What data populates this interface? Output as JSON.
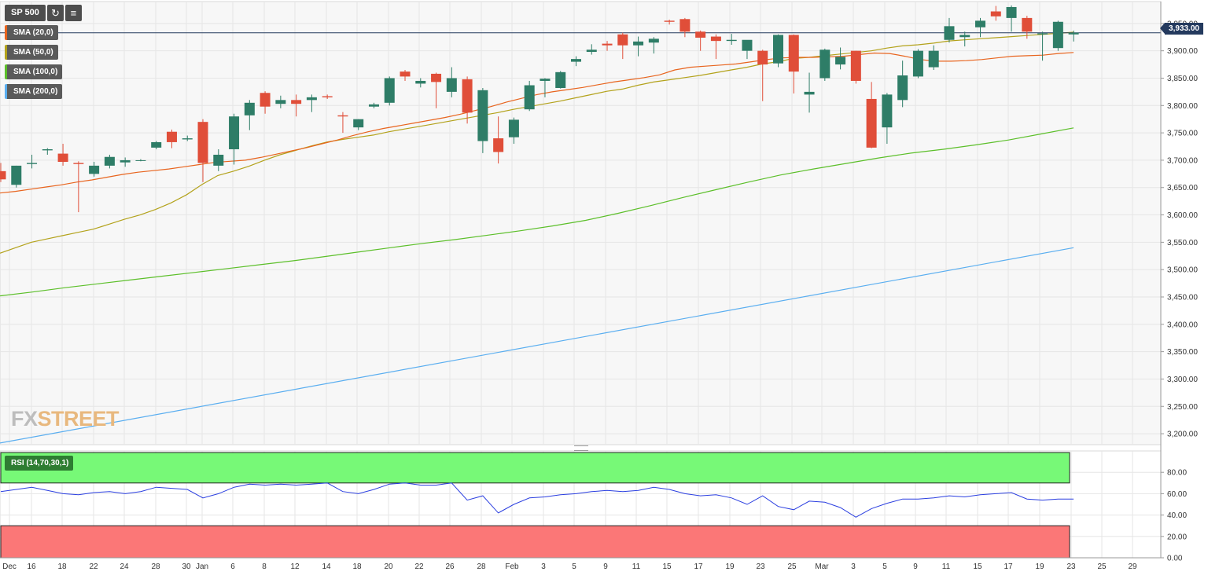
{
  "symbol": "SP 500",
  "toolbar": {
    "refresh_icon": "refresh-icon",
    "settings_icon": "chart-settings-icon"
  },
  "indicators": [
    {
      "label": "SMA (20,0)",
      "color": "#e8641e"
    },
    {
      "label": "SMA (50,0)",
      "color": "#b3a21b"
    },
    {
      "label": "SMA (100,0)",
      "color": "#5cbf2a"
    },
    {
      "label": "SMA (200,0)",
      "color": "#5aaef0"
    }
  ],
  "rsi_label": "RSI (14,70,30,1)",
  "last_price_label": "3,933.00",
  "last_price": 3933,
  "watermark": {
    "part1": "FX",
    "part2": "STREET"
  },
  "colors": {
    "up": "#2e7d67",
    "down": "#e04e39",
    "grid": "#e6e6e6",
    "rsi_line": "#2a3ee0",
    "overbought": "#77f977",
    "oversold": "#fb7777",
    "current_price_line": "#243a5e"
  },
  "chart_data": [
    {
      "type": "candlestick",
      "title": "SP 500",
      "ylim": [
        3180,
        3990
      ],
      "y_ticks": [
        "3,200.00",
        "3,250.00",
        "3,300.00",
        "3,350.00",
        "3,400.00",
        "3,450.00",
        "3,500.00",
        "3,550.00",
        "3,600.00",
        "3,650.00",
        "3,700.00",
        "3,750.00",
        "3,800.00",
        "3,850.00",
        "3,900.00",
        "3,950.00"
      ],
      "y_tick_values": [
        3200,
        3250,
        3300,
        3350,
        3400,
        3450,
        3500,
        3550,
        3600,
        3650,
        3700,
        3750,
        3800,
        3850,
        3900,
        3950
      ],
      "x_ticks": [
        "Dec",
        "16",
        "18",
        "22",
        "24",
        "28",
        "30",
        "Jan",
        "6",
        "8",
        "12",
        "14",
        "18",
        "20",
        "22",
        "26",
        "28",
        "Feb",
        "3",
        "5",
        "9",
        "11",
        "15",
        "17",
        "19",
        "23",
        "25",
        "Mar",
        "3",
        "5",
        "9",
        "11",
        "15",
        "17",
        "19",
        "23",
        "25",
        "29"
      ],
      "candles": [
        {
          "o": 3680,
          "h": 3695,
          "l": 3660,
          "c": 3665
        },
        {
          "o": 3655,
          "h": 3690,
          "l": 3650,
          "c": 3690
        },
        {
          "o": 3693,
          "h": 3710,
          "l": 3685,
          "c": 3695
        },
        {
          "o": 3718,
          "h": 3722,
          "l": 3710,
          "c": 3720
        },
        {
          "o": 3712,
          "h": 3730,
          "l": 3690,
          "c": 3697
        },
        {
          "o": 3695,
          "h": 3698,
          "l": 3605,
          "c": 3693
        },
        {
          "o": 3675,
          "h": 3697,
          "l": 3670,
          "c": 3690
        },
        {
          "o": 3690,
          "h": 3710,
          "l": 3685,
          "c": 3706
        },
        {
          "o": 3696,
          "h": 3705,
          "l": 3688,
          "c": 3700
        },
        {
          "o": 3700,
          "h": 3702,
          "l": 3698,
          "c": 3700
        },
        {
          "o": 3723,
          "h": 3735,
          "l": 3720,
          "c": 3733
        },
        {
          "o": 3752,
          "h": 3756,
          "l": 3722,
          "c": 3733
        },
        {
          "o": 3738,
          "h": 3745,
          "l": 3735,
          "c": 3740
        },
        {
          "o": 3770,
          "h": 3775,
          "l": 3660,
          "c": 3695
        },
        {
          "o": 3690,
          "h": 3720,
          "l": 3680,
          "c": 3710
        },
        {
          "o": 3720,
          "h": 3785,
          "l": 3692,
          "c": 3780
        },
        {
          "o": 3782,
          "h": 3810,
          "l": 3755,
          "c": 3805
        },
        {
          "o": 3823,
          "h": 3826,
          "l": 3785,
          "c": 3798
        },
        {
          "o": 3803,
          "h": 3818,
          "l": 3795,
          "c": 3810
        },
        {
          "o": 3810,
          "h": 3820,
          "l": 3780,
          "c": 3803
        },
        {
          "o": 3810,
          "h": 3820,
          "l": 3788,
          "c": 3815
        },
        {
          "o": 3817,
          "h": 3820,
          "l": 3812,
          "c": 3815
        },
        {
          "o": 3782,
          "h": 3788,
          "l": 3750,
          "c": 3780
        },
        {
          "o": 3760,
          "h": 3775,
          "l": 3755,
          "c": 3775
        },
        {
          "o": 3798,
          "h": 3805,
          "l": 3795,
          "c": 3802
        },
        {
          "o": 3805,
          "h": 3853,
          "l": 3800,
          "c": 3850
        },
        {
          "o": 3862,
          "h": 3865,
          "l": 3845,
          "c": 3853
        },
        {
          "o": 3840,
          "h": 3850,
          "l": 3833,
          "c": 3845
        },
        {
          "o": 3858,
          "h": 3860,
          "l": 3795,
          "c": 3843
        },
        {
          "o": 3825,
          "h": 3870,
          "l": 3815,
          "c": 3850
        },
        {
          "o": 3848,
          "h": 3853,
          "l": 3767,
          "c": 3787
        },
        {
          "o": 3735,
          "h": 3832,
          "l": 3713,
          "c": 3828
        },
        {
          "o": 3740,
          "h": 3780,
          "l": 3694,
          "c": 3715
        },
        {
          "o": 3742,
          "h": 3778,
          "l": 3730,
          "c": 3774
        },
        {
          "o": 3793,
          "h": 3845,
          "l": 3790,
          "c": 3837
        },
        {
          "o": 3845,
          "h": 3850,
          "l": 3815,
          "c": 3849
        },
        {
          "o": 3832,
          "h": 3863,
          "l": 3831,
          "c": 3861
        },
        {
          "o": 3880,
          "h": 3890,
          "l": 3872,
          "c": 3885
        },
        {
          "o": 3898,
          "h": 3912,
          "l": 3893,
          "c": 3902
        },
        {
          "o": 3913,
          "h": 3918,
          "l": 3900,
          "c": 3910
        },
        {
          "o": 3930,
          "h": 3933,
          "l": 3885,
          "c": 3910
        },
        {
          "o": 3910,
          "h": 3926,
          "l": 3890,
          "c": 3917
        },
        {
          "o": 3915,
          "h": 3925,
          "l": 3895,
          "c": 3922
        },
        {
          "o": 3955,
          "h": 3957,
          "l": 3948,
          "c": 3953
        },
        {
          "o": 3958,
          "h": 3960,
          "l": 3925,
          "c": 3935
        },
        {
          "o": 3935,
          "h": 3937,
          "l": 3900,
          "c": 3924
        },
        {
          "o": 3926,
          "h": 3930,
          "l": 3885,
          "c": 3918
        },
        {
          "o": 3918,
          "h": 3931,
          "l": 3911,
          "c": 3920
        },
        {
          "o": 3900,
          "h": 3918,
          "l": 3885,
          "c": 3920
        },
        {
          "o": 3900,
          "h": 3902,
          "l": 3808,
          "c": 3875
        },
        {
          "o": 3877,
          "h": 3930,
          "l": 3870,
          "c": 3929
        },
        {
          "o": 3929,
          "h": 3930,
          "l": 3822,
          "c": 3862
        },
        {
          "o": 3820,
          "h": 3860,
          "l": 3787,
          "c": 3825
        },
        {
          "o": 3850,
          "h": 3904,
          "l": 3845,
          "c": 3902
        },
        {
          "o": 3875,
          "h": 3906,
          "l": 3866,
          "c": 3889
        },
        {
          "o": 3900,
          "h": 3900,
          "l": 3840,
          "c": 3845
        },
        {
          "o": 3812,
          "h": 3843,
          "l": 3722,
          "c": 3723
        },
        {
          "o": 3760,
          "h": 3823,
          "l": 3730,
          "c": 3820
        },
        {
          "o": 3810,
          "h": 3882,
          "l": 3797,
          "c": 3855
        },
        {
          "o": 3853,
          "h": 3903,
          "l": 3850,
          "c": 3900
        },
        {
          "o": 3870,
          "h": 3910,
          "l": 3865,
          "c": 3900
        },
        {
          "o": 3920,
          "h": 3960,
          "l": 3915,
          "c": 3945
        },
        {
          "o": 3925,
          "h": 3935,
          "l": 3908,
          "c": 3929
        },
        {
          "o": 3943,
          "h": 3960,
          "l": 3925,
          "c": 3955
        },
        {
          "o": 3972,
          "h": 3982,
          "l": 3955,
          "c": 3963
        },
        {
          "o": 3960,
          "h": 3983,
          "l": 3935,
          "c": 3980
        },
        {
          "o": 3960,
          "h": 3964,
          "l": 3922,
          "c": 3935
        },
        {
          "o": 3930,
          "h": 3935,
          "l": 3882,
          "c": 3932
        },
        {
          "o": 3905,
          "h": 3955,
          "l": 3900,
          "c": 3953
        },
        {
          "o": 3930,
          "h": 3937,
          "l": 3917,
          "c": 3933
        }
      ],
      "sma": {
        "sma20": [
          3640,
          3643,
          3647,
          3651,
          3655,
          3660,
          3664,
          3669,
          3674,
          3678,
          3681,
          3684,
          3688,
          3692,
          3696,
          3698,
          3700,
          3705,
          3711,
          3717,
          3723,
          3730,
          3737,
          3745,
          3752,
          3758,
          3763,
          3768,
          3773,
          3778,
          3784,
          3791,
          3798,
          3806,
          3813,
          3820,
          3825,
          3829,
          3833,
          3838,
          3843,
          3847,
          3851,
          3856,
          3865,
          3870,
          3872,
          3874,
          3876,
          3880,
          3884,
          3887,
          3888,
          3888,
          3889,
          3890,
          3893,
          3896,
          3895,
          3890,
          3884,
          3881,
          3881,
          3882,
          3884,
          3887,
          3890,
          3891,
          3892,
          3895,
          3897
        ],
        "sma50": [
          3530,
          3540,
          3550,
          3556,
          3562,
          3568,
          3574,
          3583,
          3592,
          3600,
          3610,
          3622,
          3637,
          3656,
          3672,
          3680,
          3689,
          3700,
          3710,
          3718,
          3726,
          3733,
          3738,
          3742,
          3746,
          3752,
          3757,
          3762,
          3767,
          3772,
          3777,
          3782,
          3787,
          3793,
          3798,
          3803,
          3808,
          3814,
          3820,
          3826,
          3830,
          3837,
          3843,
          3847,
          3851,
          3855,
          3860,
          3865,
          3870,
          3876,
          3880,
          3886,
          3888,
          3891,
          3894,
          3897,
          3900,
          3905,
          3909,
          3911,
          3914,
          3918,
          3920,
          3922,
          3924,
          3926,
          3928,
          3930,
          3932,
          3934
        ],
        "sma100": [
          3452,
          3459,
          3467,
          3474,
          3481,
          3488,
          3495,
          3502,
          3509,
          3516,
          3524,
          3532,
          3540,
          3548,
          3555,
          3563,
          3571,
          3580,
          3590,
          3603,
          3617,
          3632,
          3646,
          3660,
          3673,
          3684,
          3694,
          3704,
          3713,
          3720,
          3728,
          3737,
          3748,
          3759
        ],
        "sma200": [
          3183,
          3540
        ]
      }
    },
    {
      "type": "line",
      "title": "RSI (14,70,30,1)",
      "ylim": [
        0,
        100
      ],
      "y_ticks": [
        "0.00",
        "20.00",
        "40.00",
        "60.00",
        "80.00"
      ],
      "y_tick_values": [
        0,
        20,
        40,
        60,
        80
      ],
      "bands": {
        "overbought": 70,
        "oversold": 30
      },
      "values": [
        62,
        64,
        66,
        63,
        60,
        59,
        61,
        62,
        60,
        62,
        66,
        65,
        64,
        56,
        60,
        66,
        69,
        68,
        69,
        68,
        69,
        70,
        62,
        60,
        64,
        69,
        70,
        68,
        68,
        70,
        54,
        58,
        42,
        50,
        56,
        57,
        59,
        60,
        62,
        63,
        62,
        63,
        66,
        64,
        60,
        58,
        59,
        56,
        50,
        58,
        48,
        45,
        53,
        52,
        47,
        38,
        46,
        51,
        55,
        55,
        56,
        58,
        57,
        59,
        60,
        61,
        55,
        54,
        55,
        55
      ]
    }
  ]
}
